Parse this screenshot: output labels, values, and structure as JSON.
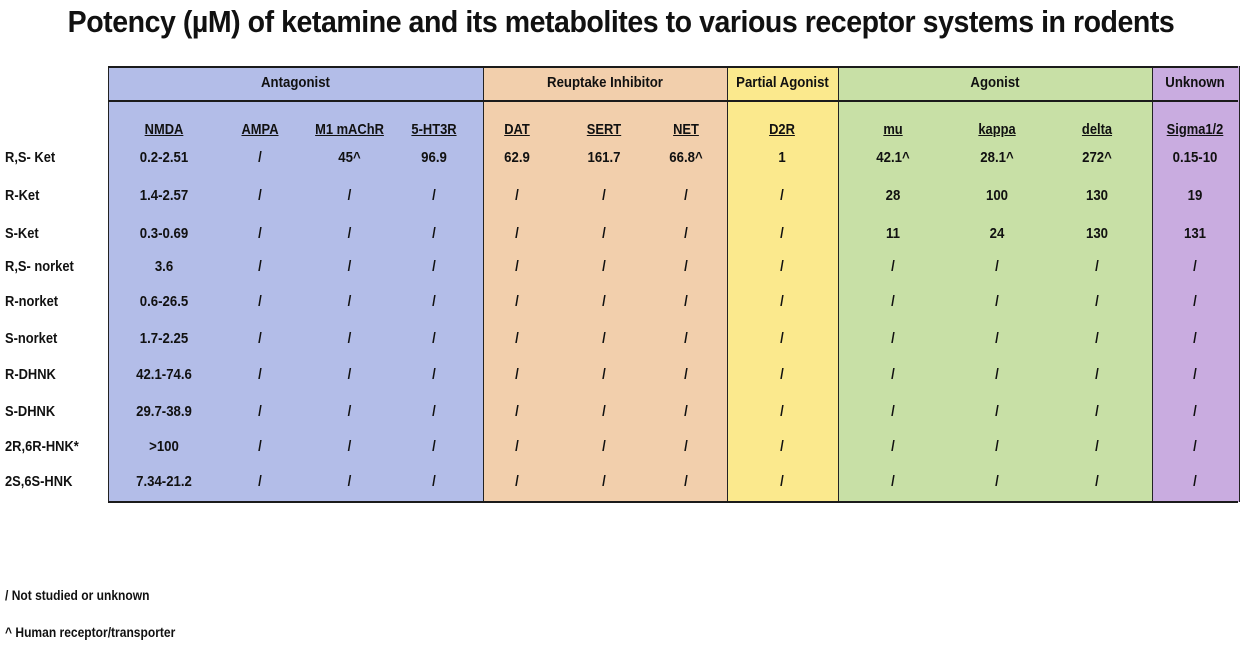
{
  "title": "Potency (µM) of ketamine and its metabolites to various receptor systems in rodents",
  "groups": [
    {
      "label": "Antagonist",
      "color": "#b3bde8"
    },
    {
      "label": "Reuptake Inhibitor",
      "color": "#f2cfac"
    },
    {
      "label": "Partial Agonist",
      "color": "#fbe98d"
    },
    {
      "label": "Agonist",
      "color": "#c8e0a6"
    },
    {
      "label": "Unknown",
      "color": "#c9ace0"
    }
  ],
  "columns": [
    "NMDA",
    "AMPA",
    "M1 mAChR",
    "5-HT3R",
    "DAT",
    "SERT",
    "NET",
    "D2R",
    "mu",
    "kappa",
    "delta",
    "Sigma1/2"
  ],
  "rows": [
    {
      "label": "R,S- Ket",
      "values": [
        "0.2-2.51",
        "/",
        "45^",
        "96.9",
        "62.9",
        "161.7",
        "66.8^",
        "1",
        "42.1^",
        "28.1^",
        "272^",
        "0.15-10"
      ]
    },
    {
      "label": "R-Ket",
      "values": [
        "1.4-2.57",
        "/",
        "/",
        "/",
        "/",
        "/",
        "/",
        "/",
        "28",
        "100",
        "130",
        "19"
      ]
    },
    {
      "label": "S-Ket",
      "values": [
        "0.3-0.69",
        "/",
        "/",
        "/",
        "/",
        "/",
        "/",
        "/",
        "11",
        "24",
        "130",
        "131"
      ]
    },
    {
      "label": "R,S- norket",
      "values": [
        "3.6",
        "/",
        "/",
        "/",
        "/",
        "/",
        "/",
        "/",
        "/",
        "/",
        "/",
        "/"
      ]
    },
    {
      "label": "R-norket",
      "values": [
        "0.6-26.5",
        "/",
        "/",
        "/",
        "/",
        "/",
        "/",
        "/",
        "/",
        "/",
        "/",
        "/"
      ]
    },
    {
      "label": "S-norket",
      "values": [
        "1.7-2.25",
        "/",
        "/",
        "/",
        "/",
        "/",
        "/",
        "/",
        "/",
        "/",
        "/",
        "/"
      ]
    },
    {
      "label": "R-DHNK",
      "values": [
        "42.1-74.6",
        "/",
        "/",
        "/",
        "/",
        "/",
        "/",
        "/",
        "/",
        "/",
        "/",
        "/"
      ]
    },
    {
      "label": "S-DHNK",
      "values": [
        "29.7-38.9",
        "/",
        "/",
        "/",
        "/",
        "/",
        "/",
        "/",
        "/",
        "/",
        "/",
        "/"
      ]
    },
    {
      "label": "2R,6R-HNK*",
      "values": [
        ">100",
        "/",
        "/",
        "/",
        "/",
        "/",
        "/",
        "/",
        "/",
        "/",
        "/",
        "/"
      ]
    },
    {
      "label": "2S,6S-HNK",
      "values": [
        "7.34-21.2",
        "/",
        "/",
        "/",
        "/",
        "/",
        "/",
        "/",
        "/",
        "/",
        "/",
        "/"
      ]
    }
  ],
  "legend": [
    "/ Not studied or unknown",
    "^ Human receptor/transporter"
  ]
}
